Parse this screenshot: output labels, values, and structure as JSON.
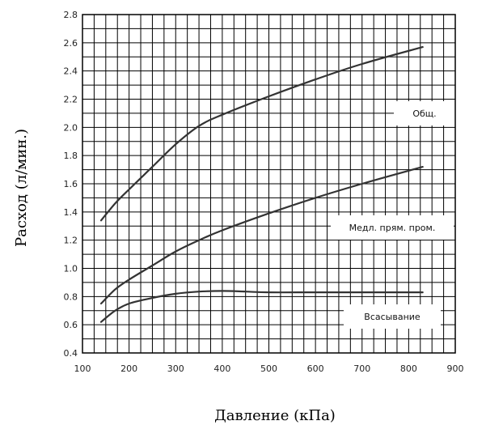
{
  "chart_data": {
    "type": "line",
    "title": "",
    "xlabel": "Давление (кПа)",
    "ylabel": "Расход (л/мин.)",
    "xlim": [
      100,
      900
    ],
    "ylim": [
      0.4,
      2.8
    ],
    "x_ticks": [
      "100",
      "200",
      "300",
      "400",
      "500",
      "600",
      "700",
      "800",
      "900"
    ],
    "y_ticks": [
      "0.4",
      "0.6",
      "0.8",
      "1.0",
      "1.2",
      "1.4",
      "1.6",
      "1.8",
      "2.0",
      "2.2",
      "2.4",
      "2.6",
      "2.8"
    ],
    "grid": true,
    "series": [
      {
        "name": "Общ.",
        "x": [
          140,
          170,
          200,
          250,
          300,
          350,
          400,
          500,
          600,
          700,
          830
        ],
        "y": [
          1.34,
          1.46,
          1.56,
          1.72,
          1.88,
          2.01,
          2.09,
          2.22,
          2.34,
          2.45,
          2.57
        ]
      },
      {
        "name": "Медл. прям. пром.",
        "x": [
          140,
          170,
          200,
          250,
          300,
          350,
          400,
          500,
          600,
          700,
          830
        ],
        "y": [
          0.75,
          0.85,
          0.92,
          1.02,
          1.12,
          1.2,
          1.27,
          1.39,
          1.5,
          1.6,
          1.72
        ]
      },
      {
        "name": "Всасывание",
        "x": [
          140,
          170,
          200,
          250,
          300,
          350,
          400,
          450,
          500,
          600,
          700,
          830
        ],
        "y": [
          0.62,
          0.7,
          0.75,
          0.79,
          0.82,
          0.835,
          0.84,
          0.835,
          0.83,
          0.83,
          0.83,
          0.83
        ]
      }
    ]
  }
}
